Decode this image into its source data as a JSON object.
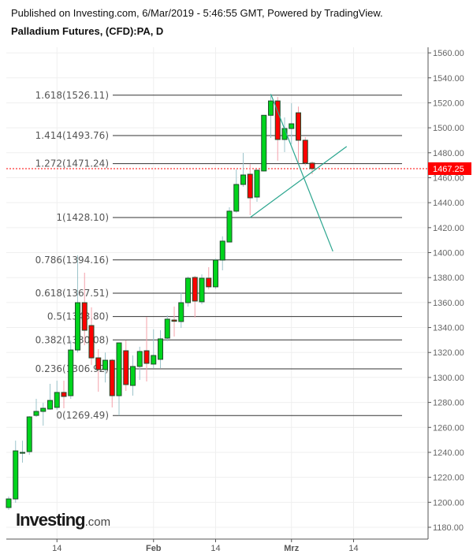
{
  "header": {
    "published": "Published on Investing.com, 6/Mar/2019 - 5:46:55 GMT, Powered by TradingView.",
    "title": "Palladium Futures, (CFD):PA, D"
  },
  "logo": {
    "main": "Investing",
    "domain": ".com",
    "accent_color": "#f5a623"
  },
  "chart_data": {
    "type": "candlestick",
    "title": "Palladium Futures, (CFD):PA, D",
    "ylim": [
      1170,
      1570
    ],
    "y_ticks": [
      "1180.00",
      "1200.00",
      "1220.00",
      "1240.00",
      "1260.00",
      "1280.00",
      "1300.00",
      "1320.00",
      "1340.00",
      "1360.00",
      "1380.00",
      "1400.00",
      "1420.00",
      "1440.00",
      "1460.00",
      "1480.00",
      "1500.00",
      "1520.00",
      "1540.00",
      "1560.00"
    ],
    "x_ticks": [
      {
        "date": "2019-01-14",
        "label": "14"
      },
      {
        "date": "2019-02-01",
        "label": "Feb"
      },
      {
        "date": "2019-02-14",
        "label": "14"
      },
      {
        "date": "2019-03-01",
        "label": "Mrz"
      },
      {
        "date": "2019-03-14",
        "label": "14"
      }
    ],
    "grid": true,
    "colors": {
      "up": "#00d41c",
      "down": "#ff0000",
      "border": "#1e4d2b",
      "up_wick": "#9cc4cb",
      "down_wick": "#f4a0aa",
      "fib": "#333333",
      "trend": "#2aa58e",
      "last_price": "#ff0000"
    },
    "candles_columns": [
      "date",
      "open",
      "high",
      "low",
      "close"
    ],
    "candles": [
      [
        "2019-01-03",
        1195.8,
        1204.6,
        1193.9,
        1202.7
      ],
      [
        "2019-01-04",
        1202.7,
        1249.4,
        1199.6,
        1241.2
      ],
      [
        "2019-01-07",
        1239.3,
        1249.4,
        1231.8,
        1240.0
      ],
      [
        "2019-01-08",
        1240.6,
        1269.0,
        1238.1,
        1268.4
      ],
      [
        "2019-01-09",
        1269.6,
        1282.9,
        1268.4,
        1272.8
      ],
      [
        "2019-01-10",
        1272.8,
        1279.7,
        1261.4,
        1275.3
      ],
      [
        "2019-01-11",
        1274.7,
        1294.9,
        1274.1,
        1281.6
      ],
      [
        "2019-01-14",
        1276.0,
        1297.4,
        1274.0,
        1288.0
      ],
      [
        "2019-01-15",
        1288.0,
        1297.4,
        1275.3,
        1284.8
      ],
      [
        "2019-01-16",
        1285.4,
        1329.6,
        1282.9,
        1322.0
      ],
      [
        "2019-01-17",
        1322.0,
        1397.8,
        1320.0,
        1359.9
      ],
      [
        "2019-01-18",
        1359.9,
        1383.9,
        1325.8,
        1337.8
      ],
      [
        "2019-01-21",
        1341.6,
        1356.1,
        1310.0,
        1315.7
      ],
      [
        "2019-01-22",
        1315.7,
        1322.7,
        1288.6,
        1306.3
      ],
      [
        "2019-01-23",
        1306.3,
        1320.0,
        1296.0,
        1313.8
      ],
      [
        "2019-01-24",
        1313.8,
        1315.0,
        1276.0,
        1285.4
      ],
      [
        "2019-01-25",
        1285.4,
        1328.0,
        1269.6,
        1327.7
      ],
      [
        "2019-01-28",
        1321.4,
        1329.6,
        1289.2,
        1294.3
      ],
      [
        "2019-01-29",
        1293.6,
        1317.6,
        1285.4,
        1308.8
      ],
      [
        "2019-01-30",
        1308.8,
        1324.6,
        1298.0,
        1320.8
      ],
      [
        "2019-01-31",
        1321.4,
        1348.6,
        1296.8,
        1311.3
      ],
      [
        "2019-02-01",
        1310.7,
        1338.5,
        1307.5,
        1317.6
      ],
      [
        "2019-02-04",
        1314.5,
        1337.8,
        1307.5,
        1330.9
      ],
      [
        "2019-02-05",
        1331.5,
        1349.8,
        1329.0,
        1346.7
      ],
      [
        "2019-02-06",
        1346.0,
        1356.8,
        1332.8,
        1345.0
      ],
      [
        "2019-02-07",
        1344.8,
        1368.1,
        1339.7,
        1359.9
      ],
      [
        "2019-02-08",
        1359.9,
        1380.8,
        1356.8,
        1379.5
      ],
      [
        "2019-02-11",
        1380.1,
        1381.4,
        1348.0,
        1361.2
      ],
      [
        "2019-02-12",
        1360.6,
        1382.6,
        1358.7,
        1379.5
      ],
      [
        "2019-02-13",
        1379.5,
        1388.3,
        1370.6,
        1372.6
      ],
      [
        "2019-02-14",
        1372.6,
        1395.2,
        1371.0,
        1394.0
      ],
      [
        "2019-02-15",
        1394.0,
        1413.0,
        1385.8,
        1409.2
      ],
      [
        "2019-02-18",
        1408.5,
        1436.3,
        1408.5,
        1433.2
      ],
      [
        "2019-02-19",
        1433.2,
        1466.6,
        1432.0,
        1454.6
      ],
      [
        "2019-02-20",
        1454.6,
        1479.9,
        1452.7,
        1462.2
      ],
      [
        "2019-02-21",
        1462.8,
        1471.0,
        1430.0,
        1443.9
      ],
      [
        "2019-02-22",
        1444.5,
        1466.0,
        1440.7,
        1466.0
      ],
      [
        "2019-02-25",
        1465.4,
        1510.0,
        1465.0,
        1510.0
      ],
      [
        "2019-02-26",
        1510.0,
        1526.6,
        1491.9,
        1521.5
      ],
      [
        "2019-02-27",
        1521.5,
        1524.7,
        1473.6,
        1490.6
      ],
      [
        "2019-02-28",
        1490.6,
        1508.3,
        1480.5,
        1499.4
      ],
      [
        "2019-03-01",
        1499.4,
        1519.7,
        1486.8,
        1503.2
      ],
      [
        "2019-03-04",
        1512.0,
        1517.0,
        1471.0,
        1490.0
      ],
      [
        "2019-03-05",
        1490.0,
        1492.5,
        1469.8,
        1471.7
      ],
      [
        "2019-03-06",
        1471.7,
        1473.0,
        1462.8,
        1467.25
      ]
    ],
    "last_price": {
      "value": 1467.25,
      "label": "1467.25"
    },
    "fibonacci": [
      {
        "ratio": "0",
        "price": 1269.49,
        "label": "0(1269.49)"
      },
      {
        "ratio": "0.236",
        "price": 1306.92,
        "label": "0.236(1306.92)"
      },
      {
        "ratio": "0.382",
        "price": 1330.08,
        "label": "0.382(1330.08)"
      },
      {
        "ratio": "0.5",
        "price": 1348.8,
        "label": "0.5(1348.80)"
      },
      {
        "ratio": "0.618",
        "price": 1367.51,
        "label": "0.618(1367.51)"
      },
      {
        "ratio": "0.786",
        "price": 1394.16,
        "label": "0.786(1394.16)"
      },
      {
        "ratio": "1",
        "price": 1428.1,
        "label": "1(1428.10)"
      },
      {
        "ratio": "1.272",
        "price": 1471.24,
        "label": "1.272(1471.24)"
      },
      {
        "ratio": "1.414",
        "price": 1493.76,
        "label": "1.414(1493.76)"
      },
      {
        "ratio": "1.618",
        "price": 1526.11,
        "label": "1.618(1526.11)"
      }
    ],
    "trend_lines": [
      {
        "from": [
          "2019-02-21",
          1428.1
        ],
        "to": [
          "2019-03-13",
          1485.0
        ]
      },
      {
        "from": [
          "2019-02-26",
          1527.0
        ],
        "to": [
          "2019-03-11",
          1401.0
        ]
      }
    ]
  }
}
